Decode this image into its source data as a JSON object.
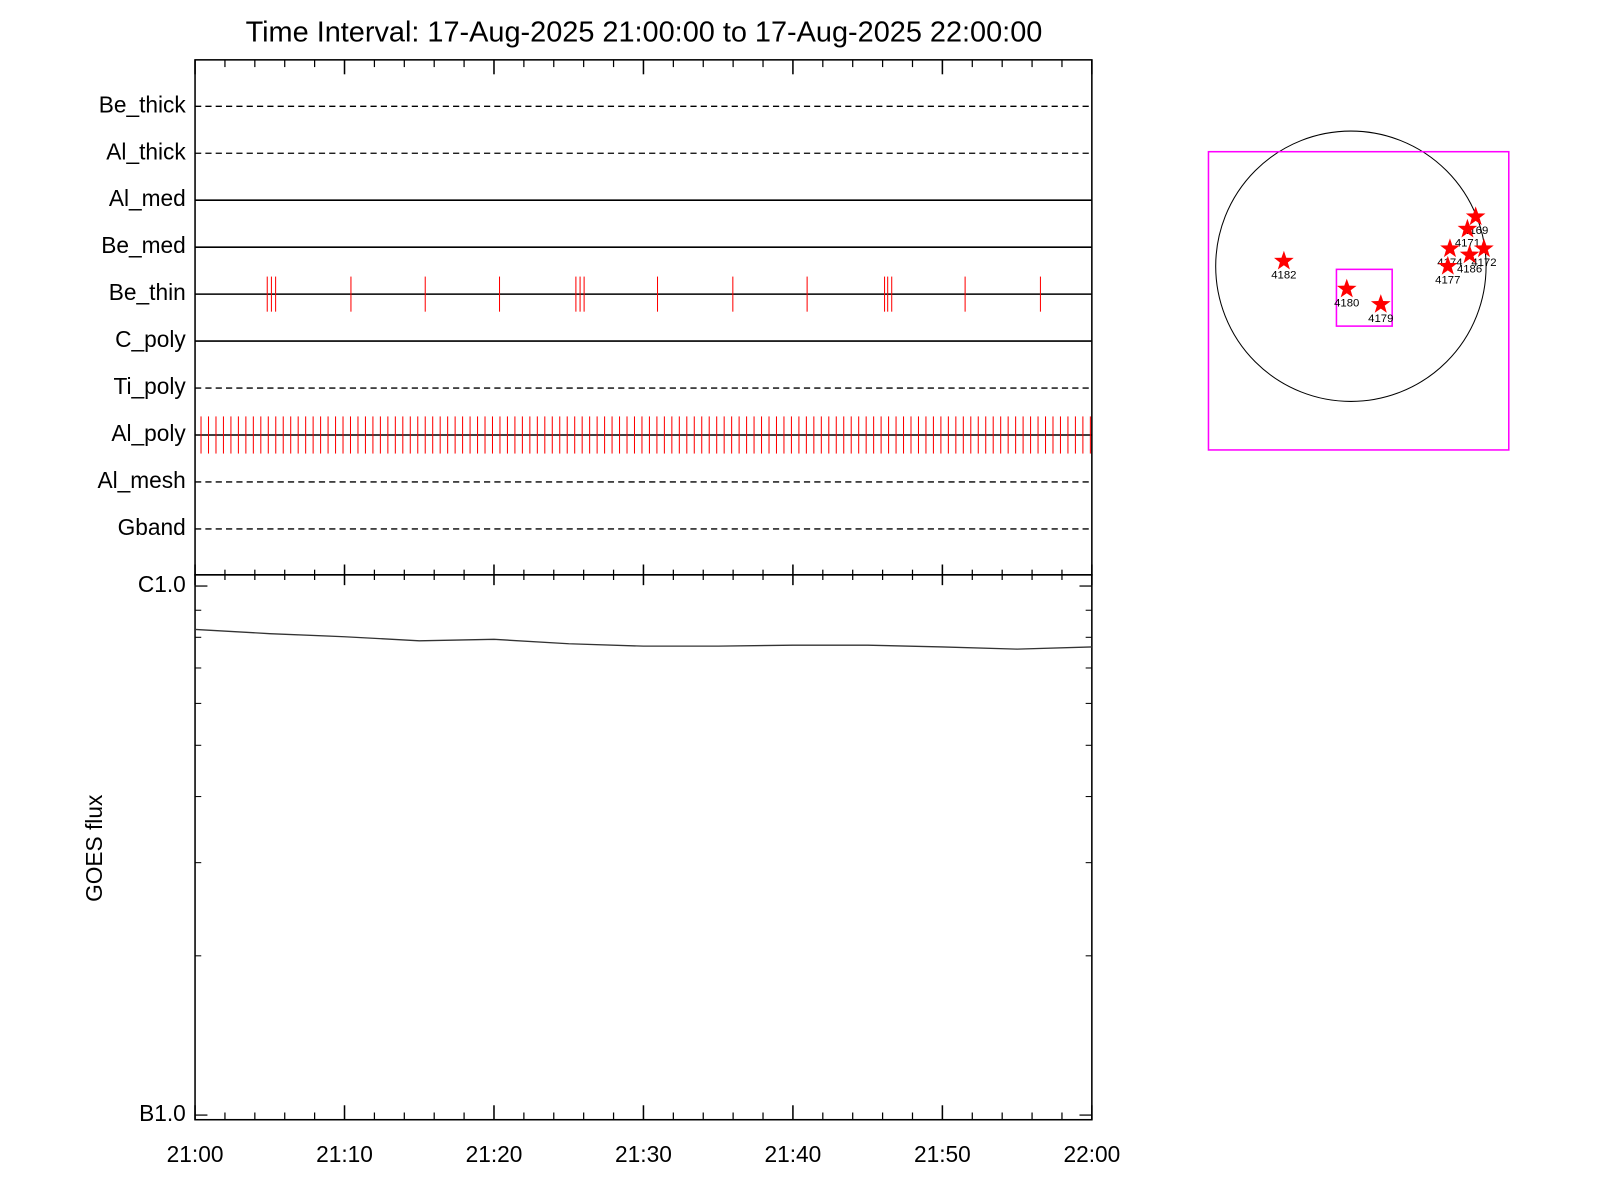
{
  "chart_data": [
    {
      "type": "events",
      "title": "Time Interval: 17-Aug-2025 21:00:00 to 17-Aug-2025 22:00:00",
      "xlim": [
        0,
        60
      ],
      "color": "#ff0000",
      "rows": [
        {
          "name": "Be_thick",
          "style": "dashed",
          "events": []
        },
        {
          "name": "Al_thick",
          "style": "dashed",
          "events": []
        },
        {
          "name": "Al_med",
          "style": "solid",
          "events": []
        },
        {
          "name": "Be_med",
          "style": "solid",
          "events": []
        },
        {
          "name": "Be_thin",
          "style": "solid",
          "events": [
            4.83,
            5.11,
            5.39,
            10.43,
            15.4,
            20.37,
            25.48,
            25.76,
            26.03,
            30.94,
            35.98,
            40.95,
            46.13,
            46.34,
            46.61,
            51.52,
            56.56
          ]
        },
        {
          "name": "C_poly",
          "style": "solid",
          "events": []
        },
        {
          "name": "Ti_poly",
          "style": "dashed",
          "events": []
        },
        {
          "name": "Al_poly",
          "style": "solid",
          "events": [
            0.4,
            0.9,
            1.4,
            1.9,
            2.4,
            2.9,
            3.4,
            3.9,
            4.4,
            4.9,
            5.4,
            5.9,
            6.4,
            6.9,
            7.4,
            7.9,
            8.4,
            8.9,
            9.4,
            9.9,
            10.4,
            10.9,
            11.4,
            11.9,
            12.4,
            12.9,
            13.4,
            13.9,
            14.4,
            14.9,
            15.4,
            15.9,
            16.4,
            16.9,
            17.4,
            17.9,
            18.4,
            18.9,
            19.4,
            19.9,
            20.4,
            20.9,
            21.4,
            21.9,
            22.4,
            22.9,
            23.4,
            23.9,
            24.4,
            24.9,
            25.4,
            25.9,
            26.4,
            26.9,
            27.4,
            27.9,
            28.4,
            28.9,
            29.4,
            29.9,
            30.4,
            30.9,
            31.4,
            31.9,
            32.4,
            32.9,
            33.4,
            33.9,
            34.4,
            34.9,
            35.4,
            35.9,
            36.4,
            36.9,
            37.4,
            37.9,
            38.4,
            38.9,
            39.4,
            39.9,
            40.4,
            40.9,
            41.4,
            41.9,
            42.4,
            42.9,
            43.4,
            43.9,
            44.4,
            44.9,
            45.4,
            45.9,
            46.4,
            46.9,
            47.4,
            47.9,
            48.4,
            48.9,
            49.4,
            49.9,
            50.4,
            50.9,
            51.4,
            51.9,
            52.4,
            52.9,
            53.4,
            53.9,
            54.4,
            54.9,
            55.4,
            55.9,
            56.4,
            56.9,
            57.4,
            57.9,
            58.4,
            58.9,
            59.4,
            59.9
          ]
        },
        {
          "name": "Al_mesh",
          "style": "dashed",
          "events": []
        },
        {
          "name": "Gband",
          "style": "dashed",
          "events": []
        }
      ]
    },
    {
      "type": "line",
      "ylabel": "GOES flux",
      "x": [
        0,
        5,
        10,
        15,
        20,
        25,
        30,
        35,
        40,
        45,
        50,
        55,
        60
      ],
      "values": [
        8.28e-07,
        8.13e-07,
        8.02e-07,
        7.88e-07,
        7.93e-07,
        7.78e-07,
        7.7e-07,
        7.7e-07,
        7.73e-07,
        7.73e-07,
        7.67e-07,
        7.6e-07,
        7.67e-07
      ],
      "color": "#333333",
      "log": true,
      "xlim": [
        0,
        60
      ],
      "xticks": [
        {
          "value": 0,
          "label": "21:00"
        },
        {
          "value": 10,
          "label": "21:10"
        },
        {
          "value": 20,
          "label": "21:20"
        },
        {
          "value": 30,
          "label": "21:30"
        },
        {
          "value": 40,
          "label": "21:40"
        },
        {
          "value": 50,
          "label": "21:50"
        },
        {
          "value": 60,
          "label": "22:00"
        }
      ],
      "xminorticks": [
        2,
        4,
        6,
        8,
        12,
        14,
        16,
        18,
        22,
        24,
        26,
        28,
        32,
        34,
        36,
        38,
        42,
        44,
        46,
        48,
        52,
        54,
        56,
        58
      ],
      "ylim": [
        9.8e-08,
        1.05e-06
      ],
      "yticks": [
        {
          "value": 1e-07,
          "label": "B1.0"
        },
        {
          "value": 1e-06,
          "label": "C1.0"
        }
      ],
      "yminorticks": [
        2e-07,
        3e-07,
        4e-07,
        5e-07,
        6e-07,
        7e-07,
        8e-07,
        9e-07
      ]
    },
    {
      "type": "map",
      "rsun": 950,
      "color": "#ff0000",
      "regions": [
        {
          "name": "4182",
          "x": -471,
          "y": 36
        },
        {
          "name": "4180",
          "x": -29,
          "y": -160
        },
        {
          "name": "4179",
          "x": 210,
          "y": -268
        },
        {
          "name": "4169",
          "x": 877,
          "y": 348
        },
        {
          "name": "4171",
          "x": 819,
          "y": 261
        },
        {
          "name": "4174",
          "x": 696,
          "y": 123
        },
        {
          "name": "4172",
          "x": 935,
          "y": 123
        },
        {
          "name": "4186",
          "x": 834,
          "y": 80
        },
        {
          "name": "4177",
          "x": 681,
          "y": 0
        }
      ]
    }
  ]
}
